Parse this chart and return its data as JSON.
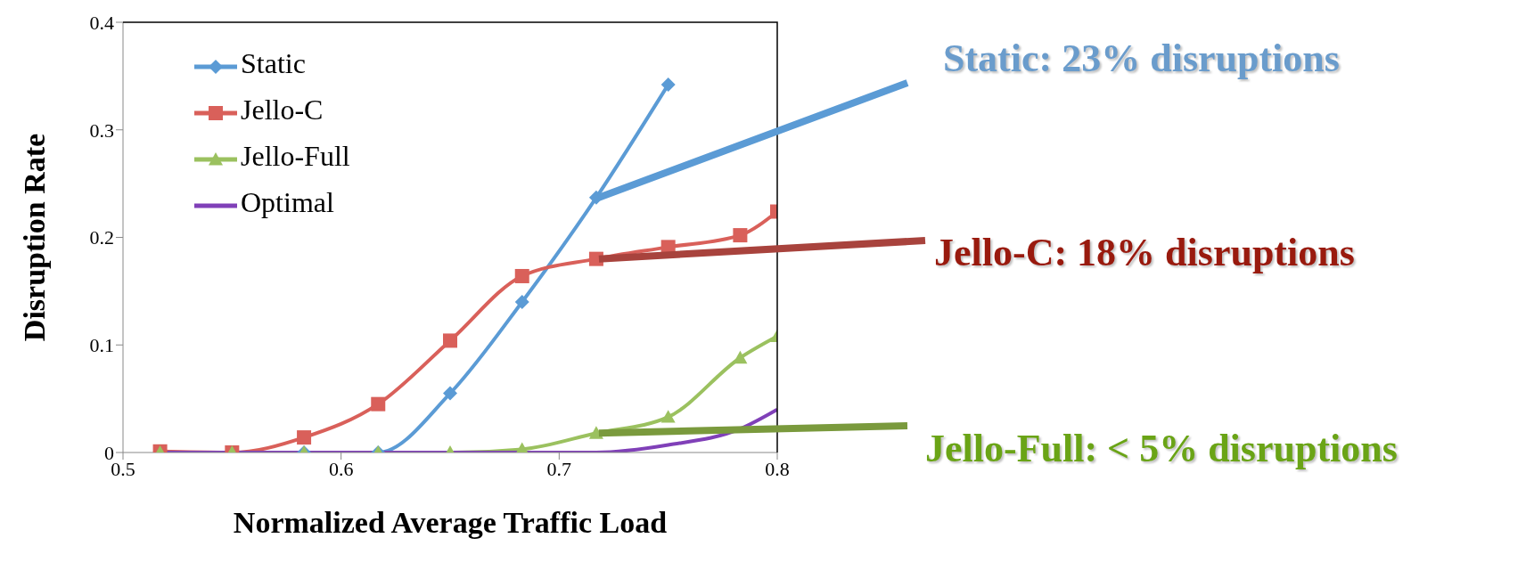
{
  "chart_data": {
    "type": "line",
    "xlabel": "Normalized Average Traffic Load",
    "ylabel": "Disruption Rate",
    "x": [
      0.517,
      0.55,
      0.583,
      0.617,
      0.65,
      0.683,
      0.717,
      0.75,
      0.783,
      0.8
    ],
    "series": [
      {
        "name": "Static",
        "color": "#5b9bd5",
        "marker": "diamond",
        "values": [
          0,
          0,
          0,
          0,
          0.055,
          0.14,
          0.237,
          0.342,
          null,
          null
        ]
      },
      {
        "name": "Jello-C",
        "color": "#d9605a",
        "marker": "square",
        "values": [
          0.001,
          0,
          0.014,
          0.045,
          0.104,
          0.164,
          0.18,
          0.191,
          0.202,
          0.224
        ]
      },
      {
        "name": "Jello-Full",
        "color": "#9bc15f",
        "marker": "triangle",
        "values": [
          0,
          0,
          0,
          0,
          0,
          0.003,
          0.018,
          0.033,
          0.088,
          0.108
        ]
      },
      {
        "name": "Optimal",
        "color": "#8040b8",
        "marker": "none",
        "values": [
          0,
          0,
          0,
          0,
          0,
          0,
          0,
          0.007,
          0.022,
          0.04
        ]
      }
    ],
    "xlim": [
      0.5,
      0.8
    ],
    "xticks": [
      0.5,
      0.6,
      0.7,
      0.8
    ],
    "ylim": [
      0,
      0.4
    ],
    "yticks": [
      0,
      {
        "value": 0.1,
        "label": "0.1"
      },
      {
        "value": 0.2,
        "label": "0.2"
      },
      {
        "value": 0.3,
        "label": "0.3"
      },
      {
        "value": 0.4,
        "label": "0.4"
      }
    ],
    "legend": "top left",
    "grid": false,
    "line_style": "solid",
    "annotations": [
      "Static: 23% disruptions",
      "Jello-C: 18% disruptions",
      "Jello-Full: < 5% disruptions"
    ]
  }
}
